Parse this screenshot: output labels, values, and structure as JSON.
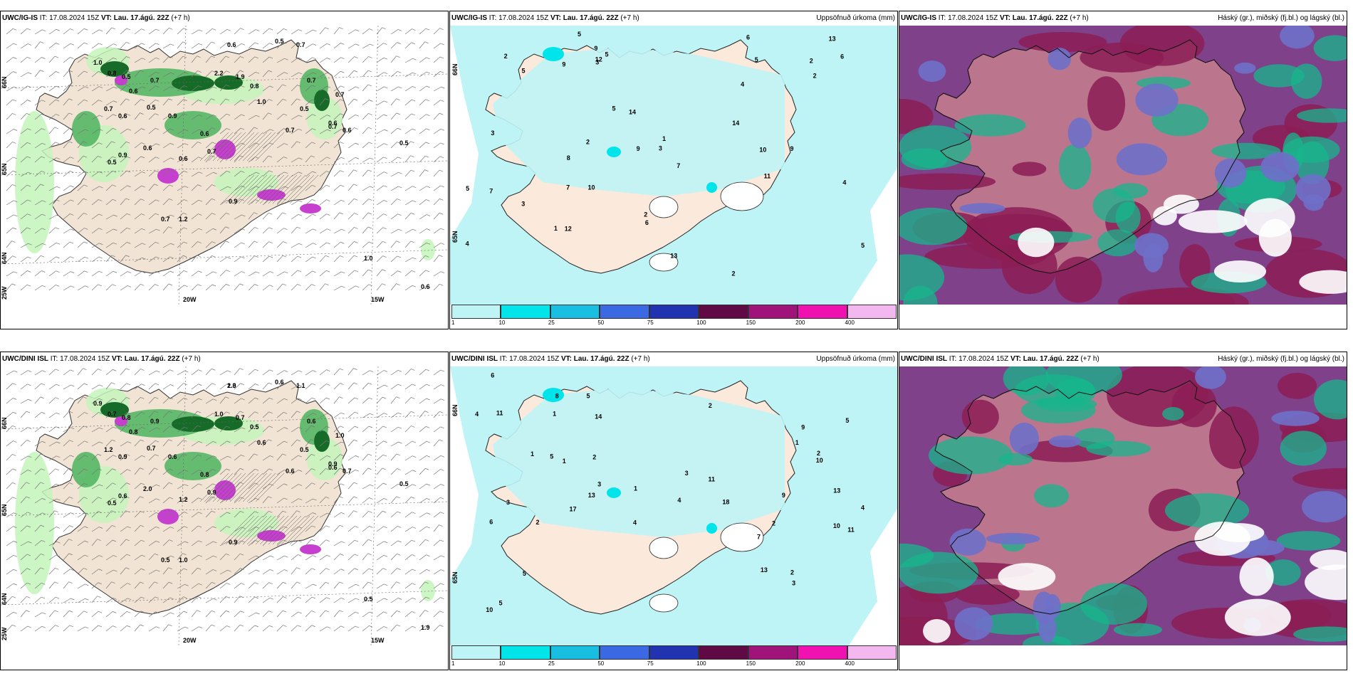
{
  "panels": [
    {
      "id": "r0c0",
      "type": "wind",
      "model": "UWC/IG-IS",
      "it": "IT: 17.08.2024 15Z",
      "vt_label": "VT:",
      "vt": "Lau. 17.ágú. 22Z",
      "lead": "(+7 h)",
      "title_right": "",
      "lat_labels": [
        "66N",
        "65N",
        "64N"
      ],
      "lon_labels": [
        "25W",
        "20W",
        "15W"
      ],
      "values": [
        "0.6",
        "0.5",
        "0.7",
        "1.0",
        "0.8",
        "0.5",
        "0.7",
        "2.2",
        "1.9",
        "0.8",
        "1.0",
        "0.6",
        "0.7",
        "0.6",
        "0.5",
        "0.9",
        "0.6",
        "0.5",
        "0.7",
        "0.6",
        "0.6",
        "0.7",
        "0.7",
        "0.5",
        "0.9",
        "0.6",
        "0.6",
        "0.7",
        "0.7",
        "1.2",
        "0.9",
        "0.7",
        "0.5",
        "1.0",
        "0.6"
      ],
      "colors": {
        "land": "#f2e4d4",
        "precip_light": "#c4f4bb",
        "precip_mid": "#55b765",
        "precip_dark": "#176b28",
        "precip_heavy": "#c63fcf"
      }
    },
    {
      "id": "r0c1",
      "type": "precip",
      "model": "UWC/IG-IS",
      "it": "IT: 17.08.2024 15Z",
      "vt_label": "VT:",
      "vt": "Lau. 17.ágú. 22Z",
      "lead": "(+7 h)",
      "title_right": "Uppsöfnuð úrkoma (mm)",
      "lat_labels": [
        "66N",
        "65N"
      ],
      "values": [
        "3",
        "5",
        "2",
        "2",
        "2",
        "2",
        "4",
        "5",
        "11",
        "13",
        "10",
        "7",
        "5",
        "4",
        "3",
        "6",
        "9",
        "9",
        "8",
        "7",
        "6",
        "5",
        "5",
        "3",
        "12",
        "14",
        "9",
        "13",
        "14",
        "10",
        "12",
        "7",
        "9",
        "2",
        "1",
        "1",
        "4",
        "5",
        "6",
        "3",
        "5",
        "2"
      ],
      "colors": {
        "land": "#fbe9dc",
        "precip_light": "#bff4f6",
        "precip_mid": "#00e4ea"
      }
    },
    {
      "id": "r0c2",
      "type": "cloud",
      "model": "UWC/IG-IS",
      "it": "IT: 17.08.2024 15Z",
      "vt_label": "VT:",
      "vt": "Lau. 17.ágú. 22Z",
      "lead": "(+7 h)",
      "title_right": "Háský (gr.), miðský (fj.bl.) og lágský (bl.)",
      "colors": {
        "high": "#8c1d55",
        "mid": "#6f70c9",
        "low": "#17b58c",
        "land": "#f4e2d2"
      }
    },
    {
      "id": "r1c0",
      "type": "wind",
      "model": "UWC/DINI ISL",
      "it": "IT: 17.08.2024 15Z",
      "vt_label": "VT:",
      "vt": "Lau. 17.ágú. 22Z",
      "lead": "(+7 h)",
      "title_right": "",
      "lat_labels": [
        "66N",
        "65N",
        "64N"
      ],
      "lon_labels": [
        "25W",
        "20W",
        "15W"
      ],
      "values": [
        "1.3",
        "0.6",
        "1.1",
        "0.9",
        "0.7",
        "0.8",
        "0.9",
        "1.0",
        "0.7",
        "0.5",
        "0.6",
        "0.8",
        "1.2",
        "0.9",
        "0.7",
        "0.6",
        "0.8",
        "0.5",
        "0.6",
        "0.9",
        "0.7",
        "0.6",
        "1.0",
        "0.5",
        "0.6",
        "2.0",
        "1.2",
        "0.9",
        "0.5",
        "1.0",
        "0.9",
        "0.6",
        "0.5",
        "0.5",
        "1.9",
        "2.0"
      ],
      "colors": {
        "land": "#f2e4d4",
        "precip_light": "#c4f4bb",
        "precip_mid": "#55b765",
        "precip_dark": "#176b28",
        "precip_heavy": "#c63fcf"
      }
    },
    {
      "id": "r1c1",
      "type": "precip",
      "model": "UWC/DINI ISL",
      "it": "IT: 17.08.2024 15Z",
      "vt_label": "VT:",
      "vt": "Lau. 17.ágú. 22Z",
      "lead": "(+7 h)",
      "title_right": "Uppsöfnuð úrkoma (mm)",
      "lat_labels": [
        "66N",
        "65N"
      ],
      "values": [
        "5",
        "5",
        "4",
        "3",
        "3",
        "18",
        "13",
        "10",
        "5",
        "6",
        "4",
        "7",
        "11",
        "9",
        "17",
        "13",
        "5",
        "8",
        "5",
        "2",
        "11",
        "13",
        "10",
        "9",
        "11",
        "14",
        "6",
        "4",
        "10",
        "3",
        "2",
        "2",
        "1",
        "1",
        "1",
        "3",
        "2",
        "4",
        "1",
        "2",
        "1",
        "2"
      ],
      "colors": {
        "land": "#fbe9dc",
        "precip_light": "#bff4f6",
        "precip_mid": "#00e4ea"
      }
    },
    {
      "id": "r1c2",
      "type": "cloud",
      "model": "UWC/DINI ISL",
      "it": "IT: 17.08.2024 15Z",
      "vt_label": "VT:",
      "vt": "Lau. 17.ágú. 22Z",
      "lead": "(+7 h)",
      "title_right": "Háský (gr.), miðský (fj.bl.) og lágský (bl.)",
      "colors": {
        "high": "#8c1d55",
        "mid": "#6f70c9",
        "low": "#17b58c",
        "land": "#f4e2d2"
      }
    }
  ],
  "precip_colorbar": {
    "ticks": [
      "1",
      "10",
      "25",
      "50",
      "75",
      "100",
      "150",
      "200",
      "400"
    ],
    "colors": [
      "#bff4f6",
      "#00e4ea",
      "#19bfe0",
      "#3b69e3",
      "#2233b2",
      "#5f0a44",
      "#a0137a",
      "#ef11b0",
      "#f4b8f0"
    ]
  }
}
